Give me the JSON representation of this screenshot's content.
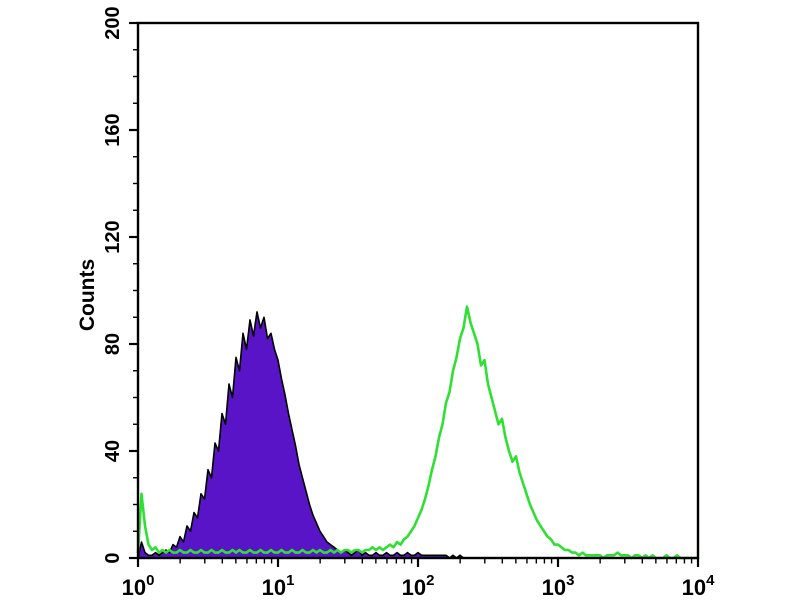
{
  "chart_data": {
    "type": "area",
    "subtype": "flow-cytometry-overlay-histogram",
    "title": "",
    "xlabel": "",
    "ylabel": "Counts",
    "grid": false,
    "legend": null,
    "x_axis": {
      "scale": "log10",
      "lim_log": [
        0,
        4
      ],
      "major_ticks_log": [
        0,
        1,
        2,
        3,
        4
      ],
      "minor_ticks": "log sub-decades 2-9",
      "tick_labels": [
        {
          "base": "10",
          "exp": "0"
        },
        {
          "base": "10",
          "exp": "1"
        },
        {
          "base": "10",
          "exp": "2"
        },
        {
          "base": "10",
          "exp": "3"
        },
        {
          "base": "10",
          "exp": "4"
        }
      ]
    },
    "y_axis": {
      "title": "Counts",
      "lim": [
        0,
        200
      ],
      "major_ticks": [
        0,
        40,
        80,
        120,
        160,
        200
      ],
      "tick_labels": [
        "0",
        "40",
        "80",
        "120",
        "160",
        "200"
      ],
      "minor_step": 10
    },
    "series": [
      {
        "name": "purple-filled-histogram",
        "style": "filled",
        "fill": "#5a14c8",
        "outline": "#000000",
        "peak_log_x": 0.85,
        "peak_counts": 92,
        "log_start": 0.0,
        "log_step": 0.025,
        "counts": [
          0,
          6,
          2,
          1,
          1,
          2,
          1,
          2,
          3,
          2,
          5,
          4,
          8,
          6,
          12,
          10,
          17,
          15,
          24,
          22,
          33,
          30,
          43,
          40,
          54,
          50,
          65,
          60,
          75,
          70,
          84,
          78,
          89,
          83,
          92,
          86,
          90,
          82,
          84,
          78,
          74,
          67,
          61,
          54,
          48,
          42,
          35,
          30,
          25,
          20,
          16,
          13,
          10,
          8,
          6,
          5,
          4,
          3,
          2,
          3,
          2,
          1,
          2,
          3,
          1,
          2,
          1,
          1,
          2,
          1,
          1,
          2,
          1,
          1,
          2,
          1,
          1,
          2,
          1,
          1,
          2,
          1,
          1,
          1,
          1,
          1,
          1,
          1,
          1,
          0,
          1,
          0,
          1,
          0
        ]
      },
      {
        "name": "green-open-histogram",
        "style": "open-line",
        "color": "#2ee032",
        "peak_log_x": 2.35,
        "peak_counts": 94,
        "log_start": 0.0,
        "log_step": 0.025,
        "counts": [
          2,
          24,
          12,
          5,
          3,
          4,
          2,
          3,
          2,
          3,
          2,
          2,
          3,
          2,
          2,
          3,
          2,
          2,
          3,
          2,
          2,
          3,
          2,
          2,
          3,
          2,
          2,
          3,
          2,
          3,
          2,
          2,
          3,
          2,
          2,
          3,
          2,
          2,
          3,
          2,
          2,
          3,
          2,
          2,
          3,
          2,
          2,
          3,
          2,
          2,
          3,
          2,
          3,
          2,
          2,
          3,
          2,
          3,
          2,
          3,
          3,
          2,
          3,
          3,
          2,
          3,
          3,
          4,
          3,
          4,
          3,
          4,
          5,
          4,
          6,
          5,
          7,
          8,
          10,
          12,
          15,
          18,
          22,
          27,
          33,
          38,
          45,
          50,
          58,
          62,
          70,
          75,
          82,
          86,
          94,
          88,
          84,
          80,
          72,
          74,
          65,
          60,
          55,
          50,
          52,
          45,
          40,
          36,
          38,
          32,
          28,
          24,
          20,
          17,
          14,
          12,
          10,
          8,
          7,
          5,
          5,
          4,
          3,
          3,
          2,
          2,
          1,
          2,
          1,
          1,
          1,
          1,
          1,
          0,
          1,
          1,
          1,
          2,
          1,
          1,
          1,
          0,
          1,
          1,
          0,
          1,
          0,
          1,
          0,
          0,
          0,
          1,
          0,
          0,
          1,
          0,
          0,
          0,
          0,
          0,
          0
        ]
      }
    ],
    "colors": {
      "frame": "#000000",
      "background": "#ffffff",
      "purple_fill": "#5a14c8",
      "green_line": "#2ee032"
    }
  }
}
